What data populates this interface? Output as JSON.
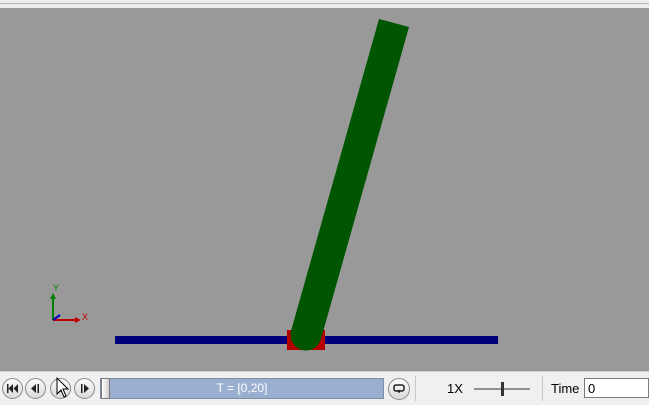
{
  "viewport": {
    "background": "#999999",
    "axes": {
      "x_label": "X",
      "y_label": "Y"
    },
    "colors": {
      "pendulum": "#005500",
      "cart": "#b50000",
      "track": "#00007a"
    }
  },
  "controls": {
    "buttons": [
      {
        "name": "first-frame-button",
        "icon": "skip-to-start-icon"
      },
      {
        "name": "step-back-button",
        "icon": "step-back-icon"
      },
      {
        "name": "play-button",
        "icon": "play-icon"
      },
      {
        "name": "step-forward-button",
        "icon": "step-forward-icon"
      }
    ],
    "timeline": {
      "label": "T = [0,20]",
      "position": 0
    },
    "loop_icon": "loop-icon",
    "speed": {
      "label": "1X",
      "level": 0.5
    },
    "time": {
      "label": "Time",
      "value": "0"
    }
  }
}
